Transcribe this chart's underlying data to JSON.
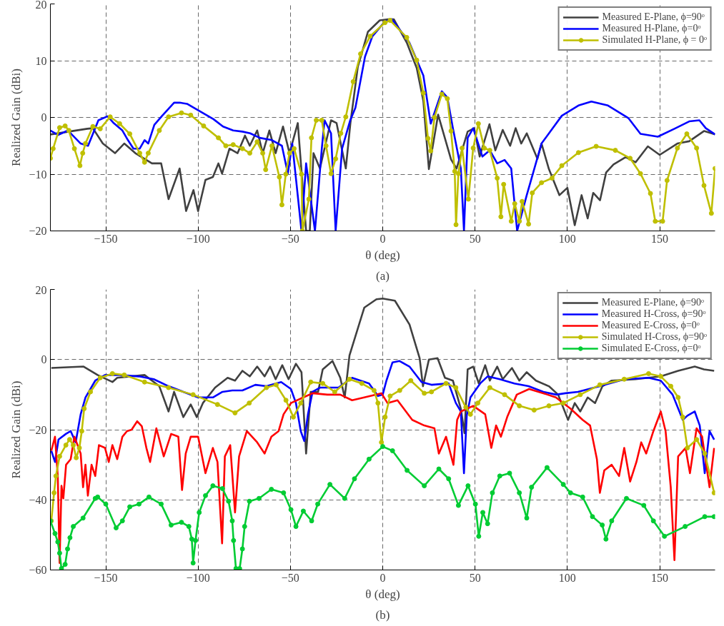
{
  "chart_data": [
    {
      "type": "line",
      "title": "(a)",
      "xlabel": "θ (deg)",
      "ylabel": "Realized Gain (dBi)",
      "xlim": [
        -180,
        180
      ],
      "ylim": [
        -20,
        20
      ],
      "xticks": [
        -150,
        -100,
        -50,
        0,
        50,
        100,
        150
      ],
      "yticks": [
        -20,
        -10,
        0,
        10,
        20
      ],
      "grid": true,
      "legend": "top right",
      "series": [
        {
          "name": "Measured E-Plane, ϕ=90ᵒ",
          "color": "#404040",
          "marker": "none",
          "x": [
            -180,
            -170,
            -160,
            -157,
            -151.6,
            -145,
            -140,
            -134,
            -125,
            -120,
            -116,
            -110,
            -106.5,
            -102.5,
            -100,
            -96,
            -92,
            -89,
            -87,
            -83,
            -78.6,
            -74.6,
            -72,
            -68,
            -65,
            -61.4,
            -58,
            -54,
            -50.5,
            -46,
            -41.5,
            -39.5,
            -37.5,
            -34,
            -28,
            -25,
            -20,
            -17.5,
            -13.5,
            -8,
            -1.6,
            3,
            6,
            13,
            18.4,
            22,
            25,
            30,
            37,
            40,
            46,
            49.5,
            52.5,
            57.8,
            61,
            65,
            69,
            72,
            75,
            78,
            83.8,
            86,
            90,
            95.7,
            100,
            104,
            107.7,
            111,
            114,
            117.7,
            121,
            125,
            131.6,
            137,
            143.6,
            150,
            159.6,
            166,
            174,
            180
          ],
          "values": [
            -3,
            -2.5,
            -2,
            -1.9,
            -4.6,
            -6.3,
            -4.6,
            -6.3,
            -8.1,
            -8.1,
            -14.4,
            -9,
            -16.5,
            -12.8,
            -16.5,
            -11,
            -10.5,
            -8.1,
            -9.9,
            -5.5,
            -6.3,
            -3.2,
            -5,
            -2.3,
            -6.3,
            -2.3,
            -6.3,
            -1.6,
            -6.3,
            -1,
            -20,
            -20,
            -6.3,
            -9,
            -0.5,
            -1,
            -9,
            -1,
            8.9,
            15.1,
            17.1,
            17.3,
            17.3,
            13.2,
            8.7,
            2.9,
            -9.1,
            0.5,
            -7.4,
            -9,
            -2.5,
            -1.9,
            -6.9,
            -1.2,
            -5.8,
            -2.2,
            -5,
            -1.9,
            -4.6,
            -2.8,
            -7.3,
            -4.6,
            -9.1,
            -13.7,
            -12.4,
            -19,
            -13.7,
            -17.8,
            -13.3,
            -14.6,
            -9.7,
            -8.3,
            -7,
            -7.9,
            -5.1,
            -6.6,
            -4.6,
            -4.2,
            -2.4,
            -3
          ]
        },
        {
          "name": "Measured H-Plane, ϕ=0ᵒ",
          "color": "#0000ff",
          "marker": "none",
          "x": [
            -180,
            -175.8,
            -170.5,
            -163.6,
            -159.6,
            -154,
            -149,
            -146,
            -141,
            -138,
            -135,
            -131.6,
            -129,
            -127,
            -123.7,
            -119.7,
            -113,
            -110,
            -106,
            -99.7,
            -91.7,
            -86.5,
            -81,
            -76,
            -71.8,
            -66.6,
            -60,
            -54.6,
            -51.4,
            -49,
            -44,
            -41.5,
            -36.7,
            -33,
            -31.5,
            -28,
            -25.5,
            -22,
            -17.6,
            -14.8,
            -9.6,
            -5.6,
            1.2,
            5,
            14.4,
            22,
            26,
            32,
            35,
            38,
            42.3,
            44,
            46,
            49,
            54,
            58,
            62,
            66,
            69.6,
            72.8,
            78,
            86,
            97,
            106,
            113,
            122,
            133,
            139.6,
            149,
            158,
            166,
            171.5,
            175,
            180
          ],
          "values": [
            -2.3,
            -3.1,
            -2.3,
            -4.6,
            -5,
            -0.5,
            0.2,
            -0.9,
            -2.3,
            -4,
            -5.5,
            -5.5,
            -4,
            -4.6,
            -1.3,
            0.2,
            2.6,
            2.6,
            2.4,
            1.2,
            -0.3,
            -1.6,
            -2.3,
            -2.5,
            -2.8,
            -3.6,
            -4,
            -5,
            -9.9,
            -4.6,
            -20,
            -8.1,
            -20,
            -5.5,
            -0.5,
            -2.8,
            -20,
            -5.5,
            -0.5,
            1.7,
            10.7,
            14.3,
            16.9,
            17.3,
            13.2,
            7.4,
            -1.1,
            4.6,
            3.5,
            -1.9,
            -9,
            -20,
            -3.6,
            -1.9,
            -6.9,
            -5.8,
            -8.1,
            -7.5,
            -9,
            -20,
            -13.7,
            -4.6,
            0.3,
            2.1,
            2.8,
            2.1,
            -0.1,
            -2.9,
            -3.4,
            -2,
            -0.7,
            -0.5,
            -1.9,
            -3
          ]
        },
        {
          "name": "Simulated H-Plane, ϕ = 0ᵒ",
          "color": "#bfbf00",
          "marker": "circle",
          "x": [
            -180,
            -178.5,
            -175,
            -172,
            -170,
            -167,
            -164,
            -162.5,
            -161,
            -157,
            -153,
            -147.6,
            -142.5,
            -137,
            -131.6,
            -129,
            -127,
            -121,
            -116,
            -109,
            -104,
            -97,
            -89,
            -85,
            -81,
            -76,
            -72,
            -68,
            -65,
            -63.4,
            -60,
            -56,
            -54.6,
            -52.5,
            -50.5,
            -48,
            -44,
            -43.5,
            -40,
            -38.6,
            -36,
            -33,
            -30.7,
            -28,
            -25.5,
            -22.7,
            -20,
            -16,
            -12,
            -6.8,
            1.2,
            4,
            13,
            18.4,
            22,
            24.5,
            26,
            28,
            32,
            35,
            37,
            39,
            39.7,
            41,
            43,
            46.4,
            49,
            51.8,
            55,
            58,
            62,
            64,
            65.5,
            69.6,
            71.5,
            74,
            75.5,
            79,
            81,
            86,
            91.7,
            97,
            106,
            115.6,
            126,
            134,
            139.6,
            145,
            147.6,
            151.6,
            154,
            159.6,
            164.7,
            170,
            174,
            178,
            180
          ],
          "values": [
            -7.2,
            -5.5,
            -1.8,
            -1.5,
            -2.3,
            -5.5,
            -8.5,
            -6.3,
            -4.6,
            -1.6,
            -2,
            0.1,
            -1.1,
            -2.9,
            -6.3,
            -7.9,
            -6.3,
            -2.3,
            0.1,
            0.8,
            0.4,
            -1.5,
            -3.6,
            -5,
            -4.8,
            -5.5,
            -6.3,
            -4.3,
            -6.3,
            -9.2,
            -5,
            -10.5,
            -15.4,
            -10,
            -6.3,
            -5.5,
            -10,
            -20,
            -14.4,
            -3.6,
            -0.5,
            -0.5,
            -5,
            -9.9,
            -7.3,
            -2.8,
            0.1,
            6.3,
            11.2,
            14.3,
            16.7,
            17.1,
            14.1,
            10.1,
            4.3,
            -3.7,
            -5.9,
            0,
            4.1,
            3.3,
            -2.4,
            -9.5,
            -18.9,
            -9.9,
            -5.4,
            -14.4,
            -5.4,
            -1.1,
            -5.4,
            -5.8,
            -10.7,
            -17.5,
            -11.8,
            -18.3,
            -15.2,
            -18.3,
            -14.8,
            -18.8,
            -13.3,
            -11.5,
            -10.7,
            -8.5,
            -6.2,
            -5.1,
            -5.8,
            -7.2,
            -9.9,
            -13.4,
            -18.3,
            -18.3,
            -11.1,
            -5.4,
            -2.9,
            -5.4,
            -12,
            -16.9,
            -9
          ]
        }
      ]
    },
    {
      "type": "line",
      "title": "(b)",
      "xlabel": "θ (deg)",
      "ylabel": "Realized Gain (dBi)",
      "xlim": [
        -180,
        180
      ],
      "ylim": [
        -60,
        20
      ],
      "xticks": [
        -150,
        -100,
        -50,
        0,
        50,
        100,
        150
      ],
      "yticks": [
        -60,
        -40,
        -20,
        0,
        20
      ],
      "grid": true,
      "legend": "top right",
      "series": [
        {
          "name": "Measured E-Plane, ϕ=90ᵒ",
          "color": "#404040",
          "marker": "none",
          "x": [
            -179.5,
            -162,
            -154.4,
            -146.4,
            -143.8,
            -129,
            -121,
            -116,
            -113,
            -108,
            -104,
            -100.7,
            -97.4,
            -90.8,
            -84,
            -80,
            -76,
            -72,
            -68,
            -64,
            -61,
            -58,
            -54.4,
            -51,
            -47,
            -44,
            -41.5,
            -39,
            -35,
            -32.5,
            -27.2,
            -23,
            -20.6,
            -18,
            -10,
            -3.4,
            0,
            6.6,
            14.5,
            20,
            21.8,
            25,
            29.7,
            33.7,
            38,
            42.3,
            44.3,
            46,
            49,
            52,
            55.5,
            58,
            62,
            65,
            70,
            74,
            78,
            83,
            90,
            95,
            100.4,
            104,
            107,
            111,
            115,
            119,
            124,
            137,
            150.6,
            160,
            169,
            174,
            179.5
          ],
          "values": [
            -2.4,
            -2,
            -4.4,
            -6.4,
            -5.2,
            -4.4,
            -7.6,
            -14.8,
            -9.2,
            -16.4,
            -12.8,
            -16.4,
            -12.4,
            -8,
            -5.2,
            -6,
            -3.2,
            -4.8,
            -2,
            -4.8,
            -2,
            -5.6,
            -1.6,
            -5.6,
            -1.2,
            -3.6,
            -26.8,
            -9.2,
            -9.2,
            -2.8,
            -0.4,
            -5.2,
            -10.8,
            1.2,
            14.8,
            17.2,
            17.4,
            16.8,
            10,
            0.4,
            -7.6,
            0,
            0.4,
            -5.2,
            -6,
            -14,
            -21,
            -2.8,
            -2,
            -6.8,
            -1.6,
            -6,
            -2,
            -5.6,
            -2.4,
            -6,
            -3.6,
            -6,
            -7.6,
            -10,
            -17.2,
            -12.4,
            -14.8,
            -10.8,
            -12.4,
            -7.6,
            -6,
            -5.6,
            -4.8,
            -3.2,
            -2,
            -2.8,
            -3.2
          ]
        },
        {
          "name": "Measured H-Cross, ϕ=90ᵒ",
          "color": "#0000ff",
          "marker": "none",
          "x": [
            -179.5,
            -177.5,
            -175.6,
            -171.6,
            -169,
            -166.3,
            -163.6,
            -161,
            -155.7,
            -150.4,
            -142.5,
            -132,
            -124,
            -116,
            -108,
            -100,
            -92,
            -86.8,
            -81.5,
            -76,
            -69,
            -63,
            -55,
            -49.7,
            -47,
            -44.4,
            -42.5,
            -40.5,
            -38,
            -34,
            -24,
            -16.6,
            -7.4,
            -2.6,
            0,
            2,
            5.3,
            9,
            14.5,
            21,
            26.4,
            35.7,
            39.6,
            42.3,
            44,
            45.5,
            47.5,
            52.8,
            56.8,
            63.4,
            71.3,
            79,
            87,
            94,
            99,
            105.7,
            117.6,
            131,
            144,
            150.6,
            157,
            162.5,
            165,
            169,
            171.7,
            174.4,
            177,
            179.5
          ],
          "values": [
            -26,
            -29.2,
            -22.8,
            -21.2,
            -20.4,
            -23.6,
            -15.6,
            -10.8,
            -6,
            -4.4,
            -4.4,
            -4.8,
            -5.6,
            -7.6,
            -9.2,
            -10.8,
            -10.8,
            -9.2,
            -8.8,
            -8.8,
            -7.2,
            -7.6,
            -6.4,
            -8.4,
            -12.4,
            -20.4,
            -23.2,
            -15.6,
            -9.2,
            -8,
            -8,
            -5.2,
            -6.8,
            -10.4,
            -10,
            -6,
            -0.8,
            -0.4,
            -2,
            -6.4,
            -7.2,
            -6.8,
            -12.4,
            -14.8,
            -32.4,
            -16,
            -10.8,
            -6.8,
            -4.8,
            -5.6,
            -6.8,
            -7.6,
            -9.2,
            -10,
            -9.6,
            -9.2,
            -7.6,
            -5.6,
            -5.2,
            -6,
            -10,
            -17.2,
            -16,
            -14.8,
            -18.8,
            -32.4,
            -20.4,
            -22.8
          ]
        },
        {
          "name": "Measured E-Cross, ϕ=0ᵒ",
          "color": "#ff0000",
          "marker": "none",
          "x": [
            -179.5,
            -177.5,
            -176,
            -175,
            -174,
            -173,
            -171.5,
            -169,
            -167,
            -163.6,
            -162.3,
            -161,
            -159.7,
            -157.7,
            -155.7,
            -153.7,
            -150.4,
            -148.4,
            -146.4,
            -143.8,
            -141,
            -138.5,
            -136,
            -133,
            -130.5,
            -128,
            -126,
            -122.6,
            -118.6,
            -114.6,
            -110.7,
            -108.7,
            -106.7,
            -104,
            -100,
            -96,
            -92,
            -89.5,
            -87,
            -85.5,
            -82.6,
            -80,
            -77.8,
            -73.6,
            -68,
            -64,
            -60.3,
            -56.4,
            -53.7,
            -49.7,
            -43,
            -38,
            -30,
            -23,
            -16.6,
            -10,
            -0.7,
            2.6,
            8,
            16,
            22.5,
            28,
            30.4,
            34.3,
            38.3,
            40.3,
            42.3,
            49,
            55.5,
            58.8,
            61.4,
            64,
            67.4,
            72.6,
            79.3,
            87,
            93.8,
            101.7,
            108.3,
            112.3,
            116,
            117.6,
            120,
            124,
            128,
            130.8,
            134,
            137.4,
            140,
            142.7,
            146.6,
            150.6,
            153.2,
            156,
            158,
            160,
            164,
            166.4,
            170,
            173,
            177,
            179.5
          ],
          "values": [
            -26,
            -22,
            -33.2,
            -58,
            -36,
            -39.6,
            -30,
            -28.4,
            -22,
            -26.8,
            -36.4,
            -30,
            -38.8,
            -30,
            -33.2,
            -24.4,
            -25.2,
            -29.2,
            -24.4,
            -28.4,
            -22,
            -20.4,
            -20,
            -17.6,
            -19,
            -25.2,
            -29.2,
            -19.6,
            -27.6,
            -21.2,
            -22,
            -37.2,
            -26.8,
            -22,
            -22,
            -32.4,
            -25.2,
            -29.2,
            -52.4,
            -27.6,
            -24.4,
            -43.6,
            -27.6,
            -20.4,
            -23.6,
            -26.8,
            -22,
            -20.4,
            -15.6,
            -12.4,
            -10.8,
            -9.6,
            -10,
            -10,
            -11.6,
            -10.8,
            -9.6,
            -12.4,
            -11.6,
            -17.2,
            -18.8,
            -19.6,
            -26.8,
            -22,
            -30,
            -17.2,
            -14.8,
            -13.2,
            -15.6,
            -25.2,
            -18.8,
            -22,
            -16.4,
            -10,
            -8.4,
            -9.6,
            -10.8,
            -14,
            -17.2,
            -18.8,
            -28.4,
            -38,
            -31.6,
            -30,
            -33.2,
            -25.2,
            -34.8,
            -29.2,
            -23.6,
            -26.8,
            -20.4,
            -14.8,
            -20.4,
            -36.4,
            -57.2,
            -27.6,
            -25.2,
            -32.4,
            -19.6,
            -22,
            -36.4,
            -25.2
          ]
        },
        {
          "name": "Simulated H-Cross, ϕ=90ᵒ",
          "color": "#bfbf00",
          "marker": "circle",
          "x": [
            -179.5,
            -178,
            -177,
            -175,
            -171.6,
            -169.6,
            -167.6,
            -166,
            -164.3,
            -163,
            -161.7,
            -158.3,
            -153,
            -146.4,
            -140,
            -129,
            -116,
            -102.7,
            -89.5,
            -80,
            -72.3,
            -63,
            -57.7,
            -52.4,
            -48.4,
            -44.4,
            -39,
            -32.5,
            -26,
            -18,
            -11.3,
            -4.7,
            -2.6,
            -0.7,
            1.3,
            4,
            9.2,
            15.2,
            22.5,
            26.4,
            34.3,
            39.6,
            45,
            47.5,
            51.5,
            58,
            66,
            74,
            82,
            90,
            97.8,
            107,
            117.6,
            130.8,
            144,
            150.6,
            156,
            160,
            162.5,
            165,
            170,
            174.4,
            179.5
          ],
          "values": [
            -46,
            -38,
            -33.2,
            -27.6,
            -24.4,
            -22.8,
            -24.4,
            -28,
            -25.2,
            -20.4,
            -14,
            -9.2,
            -5.2,
            -4,
            -4.4,
            -6.4,
            -8,
            -10,
            -12.8,
            -15.2,
            -12.4,
            -8,
            -7.2,
            -11.6,
            -16.4,
            -12.4,
            -6.4,
            -6.8,
            -9.2,
            -5.6,
            -6.8,
            -8.8,
            -12.4,
            -23.6,
            -16.4,
            -10.4,
            -8.8,
            -6,
            -9.6,
            -9.2,
            -6.8,
            -8,
            -13.6,
            -15.6,
            -12.4,
            -8,
            -10,
            -13.2,
            -14.4,
            -13.2,
            -12.4,
            -10,
            -7.2,
            -5.6,
            -4,
            -4.8,
            -7.6,
            -10.8,
            -16.4,
            -25.2,
            -22.8,
            -26.8,
            -38
          ]
        },
        {
          "name": "Simulated E-Cross, ϕ=0ᵒ",
          "color": "#00cc33",
          "marker": "circle",
          "x": [
            -180,
            -177.5,
            -176,
            -175,
            -174,
            -172,
            -170.7,
            -169.4,
            -167.6,
            -162.3,
            -155.7,
            -154.4,
            -150,
            -144.4,
            -141,
            -137,
            -132,
            -126.6,
            -120,
            -114.6,
            -109,
            -105,
            -103.4,
            -102.7,
            -101.4,
            -99.4,
            -96,
            -92,
            -86.8,
            -83.5,
            -81.5,
            -80.8,
            -79.5,
            -77.5,
            -76,
            -74.8,
            -72.2,
            -67,
            -60.3,
            -53.7,
            -49.7,
            -47,
            -43,
            -38.5,
            -35.2,
            -28.6,
            -20.6,
            -15.3,
            -7.4,
            0,
            5.3,
            13.2,
            22.5,
            30.4,
            35.7,
            41,
            46.2,
            50.2,
            52,
            54.2,
            56.8,
            59.4,
            63.4,
            68.7,
            74,
            78,
            80.6,
            89,
            97.8,
            101.7,
            108.3,
            113.6,
            118.9,
            120.9,
            124,
            132,
            141.4,
            146.6,
            152.6,
            163.8,
            174.4,
            179.5
          ],
          "values": [
            -46,
            -49.6,
            -52,
            -55.2,
            -59.6,
            -58.4,
            -54,
            -50.8,
            -47.6,
            -45.2,
            -39.6,
            -39.2,
            -41.2,
            -48,
            -46,
            -42,
            -41.2,
            -39.2,
            -41.2,
            -47.2,
            -46.4,
            -47.6,
            -51.2,
            -58,
            -51.6,
            -43.6,
            -38.8,
            -36,
            -36.8,
            -40.4,
            -46,
            -51.6,
            -59.6,
            -59.6,
            -54,
            -47.6,
            -40.4,
            -39.6,
            -37,
            -38,
            -42.8,
            -47.6,
            -43.2,
            -46,
            -41.2,
            -35.6,
            -39.6,
            -34,
            -28.4,
            -24.8,
            -26,
            -31.6,
            -36,
            -31.2,
            -34,
            -41.6,
            -36,
            -41.2,
            -50.4,
            -43.6,
            -46.8,
            -38,
            -33.2,
            -32.4,
            -38,
            -45.2,
            -36.4,
            -30.8,
            -35.6,
            -38,
            -39.2,
            -44.8,
            -47.2,
            -51.2,
            -46,
            -39.6,
            -41.6,
            -46,
            -50.4,
            -47.6,
            -44.8,
            -44.8
          ]
        }
      ]
    }
  ]
}
